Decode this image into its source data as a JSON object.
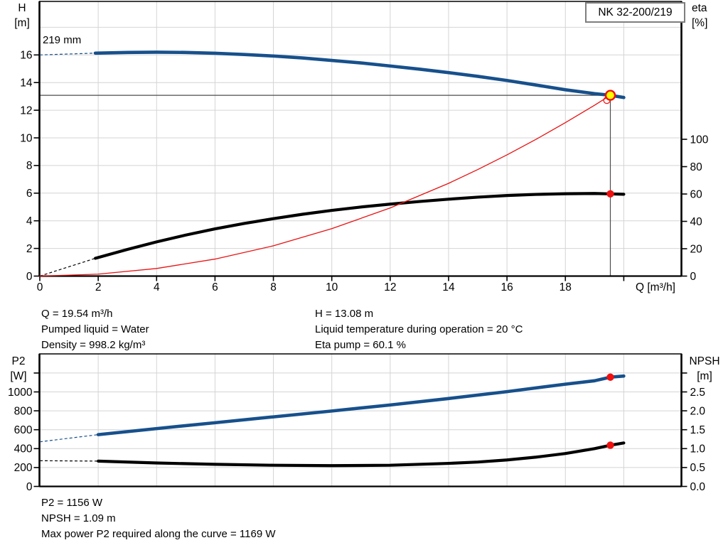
{
  "nk_box": {
    "label": "NK 32-200/219"
  },
  "impeller_label": "219 mm",
  "labels": {
    "h_axis": [
      "H",
      "[m]"
    ],
    "eta_axis": [
      "eta",
      "[%]"
    ],
    "q_axis": "Q [m³/h]",
    "p2_axis": [
      "P2",
      "[W]"
    ],
    "npsh_axis": [
      "NPSH",
      "[m]"
    ]
  },
  "info": {
    "left": [
      "Q = 19.54 m³/h",
      "Pumped liquid = Water",
      "Density = 998.2 kg/m³"
    ],
    "right": [
      "H = 13.08 m",
      "Liquid temperature during operation = 20 °C",
      "Eta pump = 60.1 %"
    ]
  },
  "results": {
    "lines": [
      "P2 = 1156 W",
      "NPSH = 1.09 m",
      "Max power P2 required along the curve = 1169 W"
    ]
  },
  "colors": {
    "curve_blue": "#17508c",
    "curve_black": "#000000",
    "curve_red": "#e81212",
    "marker_red": "#f01010",
    "marker_yellow": "#ffff00",
    "grid": "#d4d4d4",
    "crosshair": "#4d4d4d",
    "frame": "#000000"
  },
  "chart_data": [
    {
      "id": "hq",
      "type": "line",
      "title": "NK 32-200/219 pump curve",
      "grid_color": "#d4d4d4",
      "x_axis": {
        "label": "Q [m³/h]",
        "grid": [
          2,
          4,
          6,
          8,
          10,
          12,
          14,
          16,
          18,
          20
        ],
        "ticks": [
          {
            "v": 0,
            "t": "0"
          },
          {
            "v": 2,
            "t": "2"
          },
          {
            "v": 4,
            "t": "4"
          },
          {
            "v": 6,
            "t": "6"
          },
          {
            "v": 8,
            "t": "8"
          },
          {
            "v": 10,
            "t": "10"
          },
          {
            "v": 12,
            "t": "12"
          },
          {
            "v": 14,
            "t": "14"
          },
          {
            "v": 16,
            "t": "16"
          },
          {
            "v": 18,
            "t": "18"
          },
          {
            "v": 20,
            "t": ""
          }
        ],
        "range": [
          0,
          21.97
        ]
      },
      "y_left": {
        "label": "H [m]",
        "grid": [
          2,
          4,
          6,
          8,
          10,
          12,
          14,
          16,
          18
        ],
        "ticks": [
          {
            "v": 0,
            "t": "0"
          },
          {
            "v": 2,
            "t": "2"
          },
          {
            "v": 4,
            "t": "4"
          },
          {
            "v": 6,
            "t": "6"
          },
          {
            "v": 8,
            "t": "8"
          },
          {
            "v": 10,
            "t": "10"
          },
          {
            "v": 12,
            "t": "12"
          },
          {
            "v": 14,
            "t": "14"
          },
          {
            "v": 16,
            "t": "16"
          }
        ],
        "range": [
          0,
          19.87
        ]
      },
      "y_right": {
        "label": "eta [%]",
        "ticks": [
          {
            "v": 0,
            "t": "0"
          },
          {
            "v": 20,
            "t": "20"
          },
          {
            "v": 40,
            "t": "40"
          },
          {
            "v": 60,
            "t": "60"
          },
          {
            "v": 80,
            "t": "80"
          },
          {
            "v": 100,
            "t": "100"
          }
        ],
        "range": [
          0,
          200.8
        ]
      },
      "series": [
        {
          "name": "head-curve-219mm",
          "axis": "left",
          "color": "#17508c",
          "width": 4.6,
          "dash_lead": [
            [
              0,
              16.0
            ],
            [
              1.9,
              16.13
            ]
          ],
          "points": [
            [
              1.9,
              16.13
            ],
            [
              3,
              16.18
            ],
            [
              4,
              16.2
            ],
            [
              5,
              16.18
            ],
            [
              6,
              16.12
            ],
            [
              7,
              16.03
            ],
            [
              8,
              15.92
            ],
            [
              9,
              15.78
            ],
            [
              10,
              15.6
            ],
            [
              11,
              15.42
            ],
            [
              12,
              15.2
            ],
            [
              13,
              14.97
            ],
            [
              14,
              14.72
            ],
            [
              15,
              14.45
            ],
            [
              16,
              14.15
            ],
            [
              17,
              13.82
            ],
            [
              18,
              13.48
            ],
            [
              19,
              13.2
            ],
            [
              19.54,
              13.08
            ],
            [
              20,
              12.92
            ]
          ]
        },
        {
          "name": "eta-curve",
          "axis": "right",
          "color": "#000000",
          "width": 4.2,
          "dash_lead": [
            [
              0,
              0
            ],
            [
              1.9,
              13
            ]
          ],
          "points": [
            [
              1.9,
              13
            ],
            [
              3,
              19.5
            ],
            [
              4,
              25
            ],
            [
              5,
              30
            ],
            [
              6,
              34.5
            ],
            [
              7,
              38.5
            ],
            [
              8,
              42
            ],
            [
              9,
              45.2
            ],
            [
              10,
              48
            ],
            [
              11,
              50.5
            ],
            [
              12,
              52.6
            ],
            [
              13,
              54.5
            ],
            [
              14,
              56.2
            ],
            [
              15,
              57.7
            ],
            [
              16,
              58.9
            ],
            [
              17,
              59.7
            ],
            [
              18,
              60.2
            ],
            [
              19,
              60.4
            ],
            [
              19.54,
              60.1
            ],
            [
              20,
              59.8
            ]
          ]
        },
        {
          "name": "system-curve",
          "axis": "left",
          "color": "#e81212",
          "width": 1.3,
          "points": [
            [
              0,
              0
            ],
            [
              2,
              0.14
            ],
            [
              4,
              0.55
            ],
            [
              6,
              1.23
            ],
            [
              8,
              2.19
            ],
            [
              10,
              3.43
            ],
            [
              12,
              4.93
            ],
            [
              14,
              6.71
            ],
            [
              15,
              7.71
            ],
            [
              16,
              8.77
            ],
            [
              17,
              9.9
            ],
            [
              18,
              11.1
            ],
            [
              19,
              12.36
            ],
            [
              19.54,
              13.08
            ]
          ]
        }
      ],
      "crosshair": {
        "q": 19.54,
        "v": 13.08,
        "color": "#4d4d4d"
      },
      "markers": [
        {
          "name": "system-curve-end-ring",
          "axis": "left",
          "q": 19.42,
          "v": 12.72,
          "r": 4.5,
          "fill": "none",
          "stroke": "#f01010",
          "stroke_w": 1.2
        },
        {
          "name": "eta-point",
          "axis": "right",
          "q": 19.54,
          "v": 60.1,
          "r": 5.2,
          "fill": "#f01010"
        },
        {
          "name": "duty-point",
          "axis": "left",
          "q": 19.54,
          "v": 13.08,
          "r": 6.5,
          "fill": "#ffff00",
          "stroke": "#f01010",
          "stroke_w": 2.4
        }
      ]
    },
    {
      "id": "p2npsh",
      "type": "line",
      "title": "Power and NPSH curves",
      "grid_color": "#d4d4d4",
      "x_axis": {
        "label": "",
        "grid": [
          2,
          4,
          6,
          8,
          10,
          12,
          14,
          16,
          18,
          20
        ],
        "ticks": [],
        "range": [
          0,
          21.97
        ]
      },
      "y_left": {
        "label": "P2 [W]",
        "grid": [
          200,
          400,
          600,
          800,
          1000,
          1200
        ],
        "ticks": [
          {
            "v": 0,
            "t": "0"
          },
          {
            "v": 200,
            "t": "200"
          },
          {
            "v": 400,
            "t": "400"
          },
          {
            "v": 600,
            "t": "600"
          },
          {
            "v": 800,
            "t": "800"
          },
          {
            "v": 1000,
            "t": "1000"
          },
          {
            "v": 1200,
            "t": ""
          }
        ],
        "range": [
          0,
          1402
        ]
      },
      "y_right": {
        "label": "NPSH [m]",
        "ticks": [
          {
            "v": 0,
            "t": "0.0"
          },
          {
            "v": 0.5,
            "t": "0.5"
          },
          {
            "v": 1,
            "t": "1.0"
          },
          {
            "v": 1.5,
            "t": "1.5"
          },
          {
            "v": 2,
            "t": "2.0"
          },
          {
            "v": 2.5,
            "t": "2.5"
          },
          {
            "v": 3,
            "t": ""
          }
        ],
        "range": [
          0,
          3.5
        ]
      },
      "series": [
        {
          "name": "p2-curve",
          "axis": "left",
          "color": "#17508c",
          "width": 4.6,
          "dash_lead": [
            [
              0,
              472
            ],
            [
              2,
              548
            ]
          ],
          "points": [
            [
              2,
              548
            ],
            [
              4,
              612
            ],
            [
              6,
              674
            ],
            [
              8,
              736
            ],
            [
              10,
              798
            ],
            [
              12,
              862
            ],
            [
              14,
              930
            ],
            [
              16,
              1003
            ],
            [
              18,
              1082
            ],
            [
              19,
              1118
            ],
            [
              19.54,
              1156
            ],
            [
              20,
              1168
            ]
          ]
        },
        {
          "name": "npsh-curve",
          "axis": "right",
          "color": "#000000",
          "width": 4.2,
          "dash_lead": [
            [
              0,
              0.68
            ],
            [
              2,
              0.67
            ]
          ],
          "points": [
            [
              2,
              0.67
            ],
            [
              4,
              0.62
            ],
            [
              6,
              0.585
            ],
            [
              8,
              0.56
            ],
            [
              10,
              0.55
            ],
            [
              12,
              0.56
            ],
            [
              14,
              0.61
            ],
            [
              15,
              0.645
            ],
            [
              16,
              0.7
            ],
            [
              17,
              0.775
            ],
            [
              18,
              0.87
            ],
            [
              19,
              1.0
            ],
            [
              19.54,
              1.09
            ],
            [
              20,
              1.15
            ]
          ]
        }
      ],
      "markers": [
        {
          "name": "p2-point",
          "axis": "left",
          "q": 19.54,
          "v": 1156,
          "r": 5.2,
          "fill": "#f01010"
        },
        {
          "name": "npsh-point",
          "axis": "right",
          "q": 19.54,
          "v": 1.09,
          "r": 5.2,
          "fill": "#f01010"
        }
      ]
    }
  ]
}
